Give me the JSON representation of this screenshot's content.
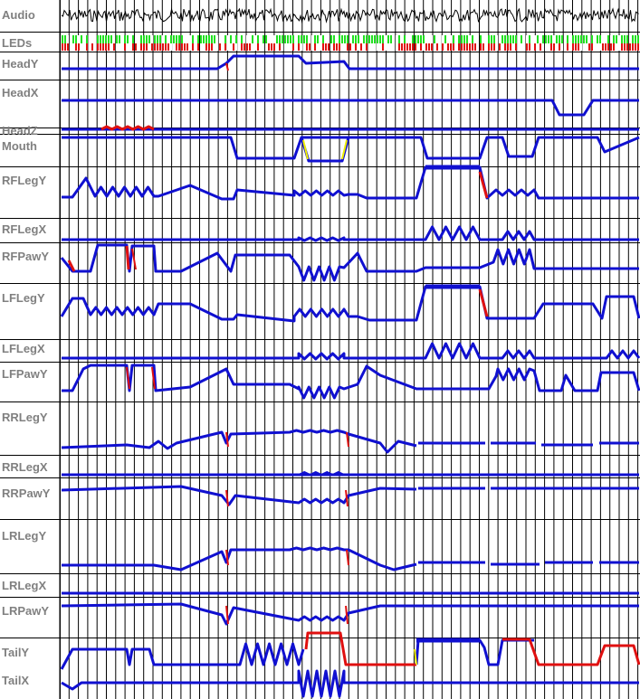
{
  "tracks": [
    {
      "id": "audio",
      "label": "Audio"
    },
    {
      "id": "leds",
      "label": "LEDs"
    },
    {
      "id": "heady",
      "label": "HeadY"
    },
    {
      "id": "headx",
      "label": "HeadX"
    },
    {
      "id": "headz",
      "label": "HeadZ"
    },
    {
      "id": "mouth",
      "label": "Mouth"
    },
    {
      "id": "rflegy",
      "label": "RFLegY"
    },
    {
      "id": "rflegx",
      "label": "RFLegX"
    },
    {
      "id": "rfpawy",
      "label": "RFPawY"
    },
    {
      "id": "lflegy",
      "label": "LFLegY"
    },
    {
      "id": "lflegx",
      "label": "LFLegX"
    },
    {
      "id": "lfpawy",
      "label": "LFPawY"
    },
    {
      "id": "rrlegy",
      "label": "RRLegY"
    },
    {
      "id": "rrlegx",
      "label": "RRLegX"
    },
    {
      "id": "rrpawy",
      "label": "RRPawY"
    },
    {
      "id": "lrlegy",
      "label": "LRLegY"
    },
    {
      "id": "lrlegx",
      "label": "LRLegX"
    },
    {
      "id": "lrpawy",
      "label": "LRPawY"
    },
    {
      "id": "taily",
      "label": "TailY"
    },
    {
      "id": "tailx",
      "label": "TailX"
    }
  ],
  "colors": {
    "curve": "#1010d0",
    "clip": "#e01010",
    "transition": "#f0f000",
    "led_on": "#20e020",
    "led_alt": "#e01010",
    "grid": "#000000",
    "label": "#808080",
    "audio": "#000000"
  }
}
